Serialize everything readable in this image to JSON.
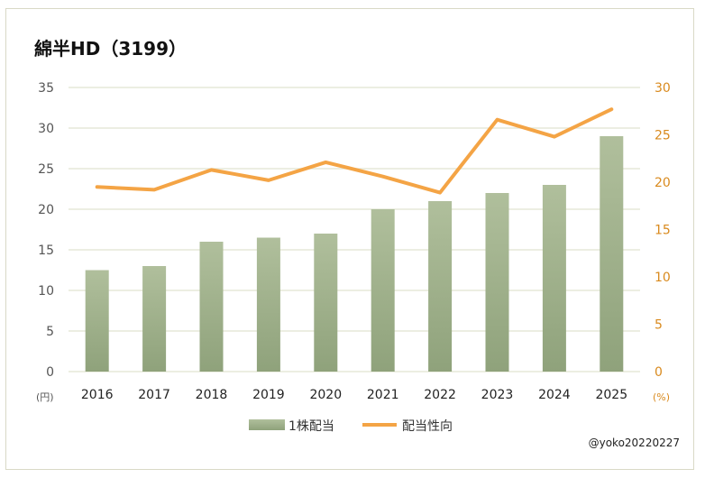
{
  "chart_data": {
    "type": "bar+line",
    "title": "綿半HD（3199）",
    "categories": [
      "2016",
      "2017",
      "2018",
      "2019",
      "2020",
      "2021",
      "2022",
      "2023",
      "2024",
      "2025"
    ],
    "series": [
      {
        "name": "1株配当",
        "type": "bar",
        "axis": "left",
        "color": "#a3b38f",
        "values": [
          12.5,
          13,
          16,
          16.5,
          17,
          20,
          21,
          22,
          23,
          29
        ]
      },
      {
        "name": "配当性向",
        "type": "line",
        "axis": "right",
        "color": "#f4a445",
        "values": [
          19.5,
          19.2,
          21.3,
          20.2,
          22.1,
          20.6,
          18.9,
          26.6,
          24.8,
          27.7
        ]
      }
    ],
    "left_axis": {
      "unit": "(円)",
      "ylim": [
        0,
        35
      ],
      "ticks": [
        0,
        5,
        10,
        15,
        20,
        25,
        30,
        35
      ]
    },
    "right_axis": {
      "unit": "(%)",
      "ylim": [
        0,
        30
      ],
      "ticks": [
        0,
        5,
        10,
        15,
        20,
        25,
        30
      ],
      "color": "#d98a1e"
    },
    "grid": true,
    "legend": "bottom"
  },
  "credit": "@yoko20220227"
}
